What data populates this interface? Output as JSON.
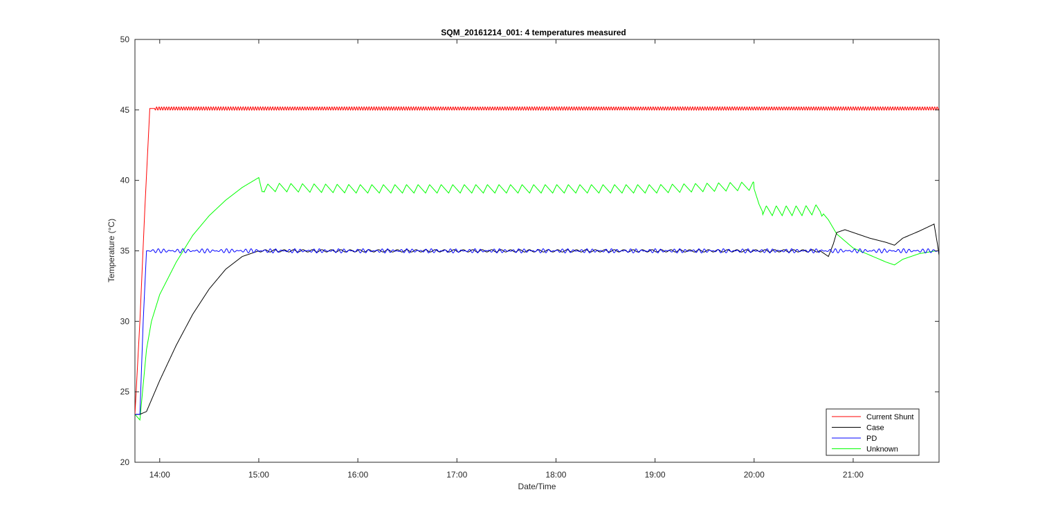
{
  "chart_data": {
    "type": "line",
    "title": "SQM_20161214_001: 4 temperatures measured",
    "xlabel": "Date/Time",
    "ylabel": "Temperature (°C)",
    "xlim": [
      "13:45",
      "21:52"
    ],
    "ylim": [
      20,
      50
    ],
    "xticks": [
      "14:00",
      "15:00",
      "16:00",
      "17:00",
      "18:00",
      "19:00",
      "20:00",
      "21:00"
    ],
    "yticks": [
      "20",
      "25",
      "30",
      "35",
      "40",
      "45",
      "50"
    ],
    "grid": false,
    "legend_position": "bottom-right",
    "series": [
      {
        "name": "Current Shunt",
        "color": "#ff0000",
        "x": [
          "13:45",
          "13:48",
          "13:51",
          "13:54",
          "13:57",
          "14:00",
          "15:00",
          "16:00",
          "17:00",
          "18:00",
          "19:00",
          "20:00",
          "21:00",
          "21:52"
        ],
        "y": [
          23.4,
          30.0,
          38.0,
          45.1,
          45.1,
          45.1,
          45.1,
          45.1,
          45.1,
          45.1,
          45.1,
          45.1,
          45.1,
          45.1
        ],
        "noise_amplitude": 0.12
      },
      {
        "name": "Case",
        "color": "#000000",
        "x": [
          "13:45",
          "13:48",
          "13:52",
          "14:00",
          "14:10",
          "14:20",
          "14:30",
          "14:40",
          "14:50",
          "15:00",
          "16:00",
          "17:00",
          "18:00",
          "19:00",
          "20:00",
          "20:40",
          "20:45",
          "20:48",
          "20:50",
          "20:55",
          "21:00",
          "21:10",
          "21:20",
          "21:25",
          "21:30",
          "21:40",
          "21:49",
          "21:51",
          "21:52"
        ],
        "y": [
          23.4,
          23.4,
          23.6,
          25.8,
          28.3,
          30.5,
          32.3,
          33.7,
          34.6,
          35.0,
          35.0,
          35.0,
          35.0,
          35.0,
          35.0,
          35.0,
          34.6,
          35.5,
          36.3,
          36.5,
          36.3,
          35.9,
          35.6,
          35.4,
          35.9,
          36.4,
          36.9,
          35.5,
          34.7
        ],
        "noise_amplitude": 0.08
      },
      {
        "name": "PD",
        "color": "#0000ff",
        "x": [
          "13:45",
          "13:48",
          "13:50",
          "13:52",
          "14:00",
          "15:00",
          "16:00",
          "17:00",
          "18:00",
          "19:00",
          "20:00",
          "21:00",
          "21:52"
        ],
        "y": [
          23.4,
          23.4,
          30.0,
          35.0,
          35.0,
          35.0,
          35.0,
          35.0,
          35.0,
          35.0,
          35.0,
          35.0,
          35.0
        ],
        "noise_amplitude": 0.15
      },
      {
        "name": "Unknown",
        "color": "#00ff00",
        "x": [
          "13:45",
          "13:48",
          "13:50",
          "13:52",
          "13:55",
          "14:00",
          "14:10",
          "14:20",
          "14:30",
          "14:40",
          "14:50",
          "15:00",
          "15:02",
          "15:10",
          "16:00",
          "17:00",
          "18:00",
          "19:00",
          "20:00",
          "20:03",
          "20:05",
          "20:30",
          "20:40",
          "20:45",
          "20:50",
          "21:00",
          "21:10",
          "21:20",
          "21:25",
          "21:30",
          "21:40",
          "21:50",
          "21:52"
        ],
        "y": [
          23.4,
          23.0,
          25.5,
          28.0,
          30.0,
          31.9,
          34.2,
          36.1,
          37.5,
          38.6,
          39.5,
          40.2,
          39.2,
          39.3,
          39.2,
          39.2,
          39.2,
          39.2,
          39.4,
          38.3,
          37.8,
          37.8,
          37.9,
          37.2,
          36.2,
          35.2,
          34.7,
          34.2,
          34.0,
          34.4,
          34.8,
          35.0,
          35.0
        ],
        "noise_amplitude": 0.0
      }
    ]
  }
}
